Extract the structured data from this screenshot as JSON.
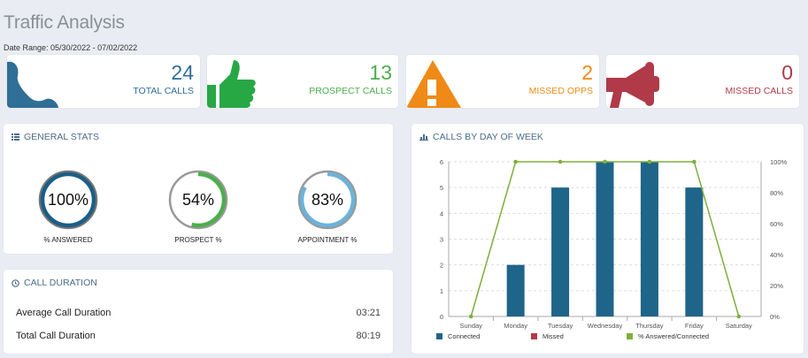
{
  "header": {
    "title": "Traffic Analysis",
    "date_range": "Date Range: 05/30/2022 - 07/02/2022"
  },
  "stats": [
    {
      "value": "24",
      "label": "TOTAL CALLS",
      "color": "#2f6e95",
      "icon": "phone-icon"
    },
    {
      "value": "13",
      "label": "PROSPECT CALLS",
      "color": "#4cae4c",
      "icon": "thumbs-up-icon"
    },
    {
      "value": "2",
      "label": "MISSED OPPS",
      "color": "#ef8a17",
      "icon": "warning-icon"
    },
    {
      "value": "0",
      "label": "MISSED CALLS",
      "color": "#b03a48",
      "icon": "megaphone-icon"
    }
  ],
  "general_stats": {
    "title": "GENERAL STATS",
    "gauges": [
      {
        "value": "100%",
        "label": "% ANSWERED",
        "fraction": 1.0,
        "color": "#1b5e86"
      },
      {
        "value": "54%",
        "label": "PROSPECT %",
        "fraction": 0.54,
        "color": "#4cae4c"
      },
      {
        "value": "83%",
        "label": "APPOINTMENT %",
        "fraction": 0.83,
        "color": "#6bb3d9"
      }
    ]
  },
  "call_duration": {
    "title": "CALL DURATION",
    "rows": [
      {
        "label": "Average Call Duration",
        "value": "03:21"
      },
      {
        "label": "Total Call Duration",
        "value": "80:19"
      }
    ]
  },
  "chart_panel": {
    "title": "CALLS BY DAY OF WEEK"
  },
  "chart_data": {
    "type": "bar",
    "categories": [
      "Sunday",
      "Monday",
      "Tuesday",
      "Wednesday",
      "Thursday",
      "Friday",
      "Saturday"
    ],
    "series": [
      {
        "name": "Connected",
        "type": "bar",
        "axis": "left",
        "color": "#1f6489",
        "values": [
          0,
          2,
          5,
          6,
          6,
          5,
          0
        ]
      },
      {
        "name": "Missed",
        "type": "bar",
        "axis": "left",
        "color": "#b03a48",
        "values": [
          0,
          0,
          0,
          0,
          0,
          0,
          0
        ]
      },
      {
        "name": "% Answered/Connected",
        "type": "line",
        "axis": "right",
        "color": "#7db03a",
        "values": [
          0,
          100,
          100,
          100,
          100,
          100,
          0
        ]
      }
    ],
    "left_ticks": [
      "0",
      "1",
      "2",
      "3",
      "4",
      "5",
      "6"
    ],
    "right_ticks": [
      "0%",
      "20%",
      "40%",
      "60%",
      "80%",
      "100%"
    ],
    "ylim": [
      0,
      6
    ],
    "y2lim": [
      0,
      100
    ],
    "grid": true,
    "legend_position": "bottom-left"
  }
}
